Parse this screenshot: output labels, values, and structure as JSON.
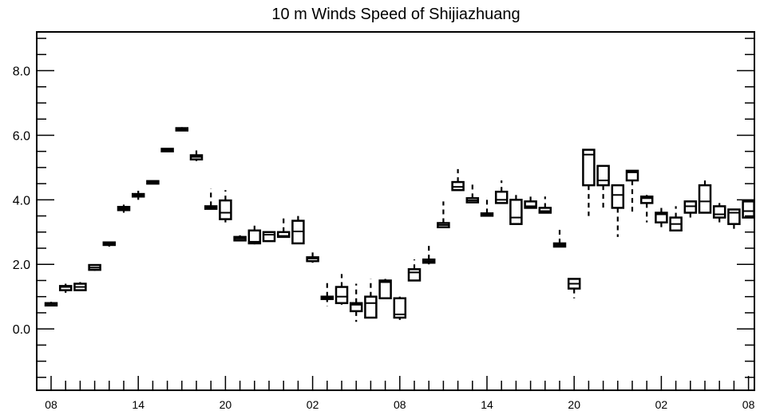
{
  "chart_data": {
    "type": "box",
    "title": "10 m Winds Speed of Shijiazhuang",
    "xlabel": "",
    "ylabel": "",
    "ylim": [
      -1.9,
      9.2
    ],
    "yticks": [
      0.0,
      2.0,
      4.0,
      6.0,
      8.0
    ],
    "ytick_labels": [
      "0.0",
      "2.0",
      "4.0",
      "6.0",
      "8.0"
    ],
    "xtick_labels": [
      "08",
      "14",
      "20",
      "02",
      "08",
      "14",
      "20",
      "02",
      "08"
    ],
    "xtick_positions": [
      0,
      6,
      12,
      18,
      24,
      30,
      36,
      42,
      48
    ],
    "grid": false,
    "boxes": [
      {
        "x": 0,
        "q1": 0.73,
        "median": 0.78,
        "q3": 0.8,
        "min": 0.72,
        "max": 0.84
      },
      {
        "x": 1,
        "q1": 1.2,
        "median": 1.3,
        "q3": 1.33,
        "min": 1.12,
        "max": 1.4
      },
      {
        "x": 2,
        "q1": 1.2,
        "median": 1.3,
        "q3": 1.4,
        "min": 1.2,
        "max": 1.45
      },
      {
        "x": 3,
        "q1": 1.83,
        "median": 1.9,
        "q3": 1.98,
        "min": 1.8,
        "max": 2.0
      },
      {
        "x": 4,
        "q1": 2.6,
        "median": 2.64,
        "q3": 2.68,
        "min": 2.55,
        "max": 2.7
      },
      {
        "x": 5,
        "q1": 3.68,
        "median": 3.73,
        "q3": 3.78,
        "min": 3.6,
        "max": 3.85
      },
      {
        "x": 6,
        "q1": 4.1,
        "median": 4.14,
        "q3": 4.18,
        "min": 4.0,
        "max": 4.28
      },
      {
        "x": 7,
        "q1": 4.5,
        "median": 4.55,
        "q3": 4.58,
        "min": 4.5,
        "max": 4.6
      },
      {
        "x": 8,
        "q1": 5.5,
        "median": 5.55,
        "q3": 5.58,
        "min": 5.5,
        "max": 5.6
      },
      {
        "x": 9,
        "q1": 6.15,
        "median": 6.18,
        "q3": 6.22,
        "min": 6.15,
        "max": 6.25
      },
      {
        "x": 10,
        "q1": 5.25,
        "median": 5.33,
        "q3": 5.38,
        "min": 5.2,
        "max": 5.55
      },
      {
        "x": 11,
        "q1": 3.72,
        "median": 3.77,
        "q3": 3.8,
        "min": 3.7,
        "max": 4.35
      },
      {
        "x": 12,
        "q1": 3.4,
        "median": 3.6,
        "q3": 3.98,
        "min": 3.3,
        "max": 4.3
      },
      {
        "x": 13,
        "q1": 2.74,
        "median": 2.8,
        "q3": 2.85,
        "min": 2.72,
        "max": 2.9
      },
      {
        "x": 14,
        "q1": 2.65,
        "median": 2.7,
        "q3": 3.05,
        "min": 2.62,
        "max": 3.3
      },
      {
        "x": 15,
        "q1": 2.72,
        "median": 2.92,
        "q3": 3.0,
        "min": 2.72,
        "max": 3.0
      },
      {
        "x": 16,
        "q1": 2.85,
        "median": 2.88,
        "q3": 3.0,
        "min": 2.85,
        "max": 3.45
      },
      {
        "x": 17,
        "q1": 2.65,
        "median": 3.02,
        "q3": 3.35,
        "min": 2.65,
        "max": 3.6
      },
      {
        "x": 18,
        "q1": 2.1,
        "median": 2.18,
        "q3": 2.22,
        "min": 2.05,
        "max": 2.45
      },
      {
        "x": 19,
        "q1": 0.98,
        "median": 0.98,
        "q3": 1.0,
        "min": 0.7,
        "max": 1.5
      },
      {
        "x": 20,
        "q1": 0.8,
        "median": 1.0,
        "q3": 1.3,
        "min": 0.75,
        "max": 1.7
      },
      {
        "x": 21,
        "q1": 0.55,
        "median": 0.75,
        "q3": 0.8,
        "min": 0.22,
        "max": 1.4
      },
      {
        "x": 22,
        "q1": 0.35,
        "median": 0.8,
        "q3": 1.0,
        "min": 0.35,
        "max": 1.55
      },
      {
        "x": 23,
        "q1": 0.95,
        "median": 1.45,
        "q3": 1.5,
        "min": 0.95,
        "max": 1.55
      },
      {
        "x": 24,
        "q1": 0.35,
        "median": 0.45,
        "q3": 0.95,
        "min": 0.28,
        "max": 1.0
      },
      {
        "x": 25,
        "q1": 1.5,
        "median": 1.75,
        "q3": 1.85,
        "min": 1.5,
        "max": 2.15
      },
      {
        "x": 26,
        "q1": 2.05,
        "median": 2.1,
        "q3": 2.15,
        "min": 2.0,
        "max": 2.65
      },
      {
        "x": 27,
        "q1": 3.15,
        "median": 3.22,
        "q3": 3.28,
        "min": 3.15,
        "max": 3.95
      },
      {
        "x": 28,
        "q1": 4.3,
        "median": 4.4,
        "q3": 4.55,
        "min": 4.3,
        "max": 4.95
      },
      {
        "x": 29,
        "q1": 3.92,
        "median": 3.98,
        "q3": 4.05,
        "min": 3.92,
        "max": 4.5
      },
      {
        "x": 30,
        "q1": 3.52,
        "median": 3.55,
        "q3": 3.58,
        "min": 3.52,
        "max": 4.05
      },
      {
        "x": 31,
        "q1": 3.9,
        "median": 4.0,
        "q3": 4.25,
        "min": 3.9,
        "max": 4.6
      },
      {
        "x": 32,
        "q1": 3.25,
        "median": 3.45,
        "q3": 4.0,
        "min": 3.25,
        "max": 4.25
      },
      {
        "x": 33,
        "q1": 3.75,
        "median": 3.8,
        "q3": 3.95,
        "min": 3.75,
        "max": 4.15
      },
      {
        "x": 34,
        "q1": 3.6,
        "median": 3.65,
        "q3": 3.75,
        "min": 3.6,
        "max": 4.1
      },
      {
        "x": 35,
        "q1": 2.55,
        "median": 2.6,
        "q3": 2.65,
        "min": 2.55,
        "max": 3.1
      },
      {
        "x": 36,
        "q1": 1.25,
        "median": 1.4,
        "q3": 1.55,
        "min": 0.95,
        "max": 1.55
      },
      {
        "x": 37,
        "q1": 4.45,
        "median": 5.4,
        "q3": 5.55,
        "min": 3.5,
        "max": 5.55
      },
      {
        "x": 38,
        "q1": 4.45,
        "median": 4.6,
        "q3": 5.05,
        "min": 3.65,
        "max": 5.05
      },
      {
        "x": 39,
        "q1": 3.75,
        "median": 4.15,
        "q3": 4.45,
        "min": 2.85,
        "max": 4.45
      },
      {
        "x": 40,
        "q1": 4.6,
        "median": 4.85,
        "q3": 4.9,
        "min": 3.55,
        "max": 4.9
      },
      {
        "x": 41,
        "q1": 3.9,
        "median": 4.05,
        "q3": 4.1,
        "min": 3.3,
        "max": 4.15
      },
      {
        "x": 42,
        "q1": 3.3,
        "median": 3.55,
        "q3": 3.6,
        "min": 3.15,
        "max": 3.85
      },
      {
        "x": 43,
        "q1": 3.05,
        "median": 3.25,
        "q3": 3.45,
        "min": 3.05,
        "max": 3.8
      },
      {
        "x": 44,
        "q1": 3.6,
        "median": 3.8,
        "q3": 3.95,
        "min": 3.35,
        "max": 3.95
      },
      {
        "x": 45,
        "q1": 3.6,
        "median": 3.95,
        "q3": 4.45,
        "min": 3.6,
        "max": 4.65
      },
      {
        "x": 46,
        "q1": 3.45,
        "median": 3.55,
        "q3": 3.8,
        "min": 3.3,
        "max": 3.9
      },
      {
        "x": 47,
        "q1": 3.25,
        "median": 3.6,
        "q3": 3.7,
        "min": 3.1,
        "max": 3.7
      },
      {
        "x": 48,
        "q1": 3.45,
        "median": 3.65,
        "q3": 3.95,
        "min": 3.45,
        "max": 3.95
      }
    ]
  }
}
